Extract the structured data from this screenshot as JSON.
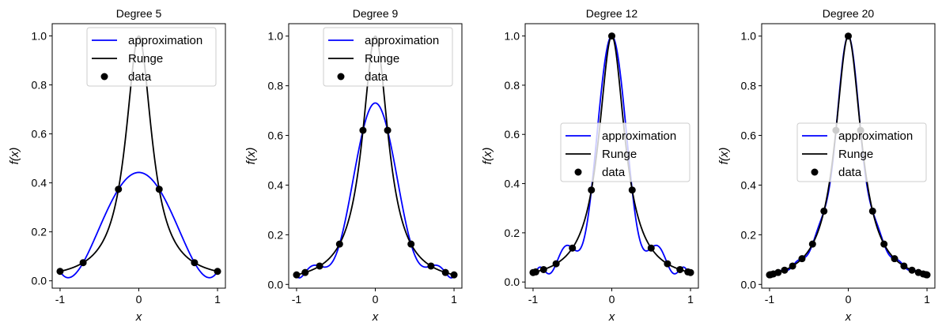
{
  "chart_data": [
    {
      "type": "line",
      "title": "Degree 5",
      "xlabel": "x",
      "ylabel": "f(x)",
      "xlim": [
        -1.1,
        1.1
      ],
      "ylim": [
        -0.03,
        1.05
      ],
      "xticks": [
        -1,
        0,
        1
      ],
      "yticks": [
        0.0,
        0.2,
        0.4,
        0.6,
        0.8,
        1.0
      ],
      "ytick_labels": [
        "0.0",
        "0.2",
        "0.4",
        "0.6",
        "0.8",
        "1.0"
      ],
      "legend_loc": "upper right",
      "legend": [
        "approximation",
        "Runge",
        "data"
      ],
      "colors": {
        "approximation": "#0000ff",
        "Runge": "#000000",
        "data": "#000000"
      },
      "approx_degree": 5,
      "data_points": {
        "x": [
          -1.0,
          -0.7071,
          -0.2588,
          0.2588,
          0.7071,
          1.0
        ],
        "y": [
          0.0385,
          0.0741,
          0.3739,
          0.3739,
          0.0741,
          0.0385
        ]
      }
    },
    {
      "type": "line",
      "title": "Degree 9",
      "xlabel": "x",
      "ylabel": "f(x)",
      "xlim": [
        -1.1,
        1.1
      ],
      "ylim": [
        -0.015,
        1.05
      ],
      "xticks": [
        -1,
        0,
        1
      ],
      "yticks": [
        0.0,
        0.2,
        0.4,
        0.6,
        0.8,
        1.0
      ],
      "ytick_labels": [
        "0.0",
        "0.2",
        "0.4",
        "0.6",
        "0.8",
        "1.0"
      ],
      "legend_loc": "upper right",
      "legend": [
        "approximation",
        "Runge",
        "data"
      ],
      "colors": {
        "approximation": "#0000ff",
        "Runge": "#000000",
        "data": "#000000"
      },
      "approx_degree": 9,
      "data_points": {
        "x": [
          -1.0,
          -0.891,
          -0.7071,
          -0.454,
          -0.1564,
          0.1564,
          0.454,
          0.7071,
          0.891,
          1.0
        ],
        "y": [
          0.0385,
          0.048,
          0.0741,
          0.1625,
          0.6205,
          0.6205,
          0.1625,
          0.0741,
          0.048,
          0.0385
        ]
      }
    },
    {
      "type": "line",
      "title": "Degree 12",
      "xlabel": "x",
      "ylabel": "f(x)",
      "xlim": [
        -1.1,
        1.1
      ],
      "ylim": [
        -0.025,
        1.05
      ],
      "xticks": [
        -1,
        0,
        1
      ],
      "yticks": [
        0.0,
        0.2,
        0.4,
        0.6,
        0.8,
        1.0
      ],
      "ytick_labels": [
        "0.0",
        "0.2",
        "0.4",
        "0.6",
        "0.8",
        "1.0"
      ],
      "legend_loc": "center right",
      "legend": [
        "approximation",
        "Runge",
        "data"
      ],
      "colors": {
        "approximation": "#0000ff",
        "Runge": "#000000",
        "data": "#000000"
      },
      "approx_degree": 12,
      "data_points": {
        "x": [
          -1.0,
          -0.9659,
          -0.866,
          -0.7071,
          -0.5,
          -0.2588,
          0.0,
          0.2588,
          0.5,
          0.7071,
          0.866,
          0.9659,
          1.0
        ],
        "y": [
          0.0385,
          0.0411,
          0.0506,
          0.0741,
          0.1379,
          0.3739,
          1.0,
          0.3739,
          0.1379,
          0.0741,
          0.0506,
          0.0411,
          0.0385
        ]
      }
    },
    {
      "type": "line",
      "title": "Degree 20",
      "xlabel": "x",
      "ylabel": "f(x)",
      "xlim": [
        -1.1,
        1.1
      ],
      "ylim": [
        -0.015,
        1.05
      ],
      "xticks": [
        -1,
        0,
        1
      ],
      "yticks": [
        0.0,
        0.2,
        0.4,
        0.6,
        0.8,
        1.0
      ],
      "ytick_labels": [
        "0.0",
        "0.2",
        "0.4",
        "0.6",
        "0.8",
        "1.0"
      ],
      "legend_loc": "center right",
      "legend": [
        "approximation",
        "Runge",
        "data"
      ],
      "colors": {
        "approximation": "#0000ff",
        "Runge": "#000000",
        "data": "#000000"
      },
      "approx_degree": 20,
      "data_points": {
        "x": [
          -1.0,
          -0.9877,
          -0.9511,
          -0.891,
          -0.809,
          -0.7071,
          -0.5878,
          -0.454,
          -0.309,
          -0.1564,
          0.0,
          0.1564,
          0.309,
          0.454,
          0.5878,
          0.7071,
          0.809,
          0.891,
          0.9511,
          0.9877,
          1.0
        ],
        "y": [
          0.0385,
          0.0394,
          0.0424,
          0.048,
          0.0575,
          0.0741,
          0.1038,
          0.1625,
          0.2952,
          0.6205,
          1.0,
          0.6205,
          0.2952,
          0.1625,
          0.1038,
          0.0741,
          0.0575,
          0.048,
          0.0424,
          0.0394,
          0.0385
        ]
      }
    }
  ]
}
